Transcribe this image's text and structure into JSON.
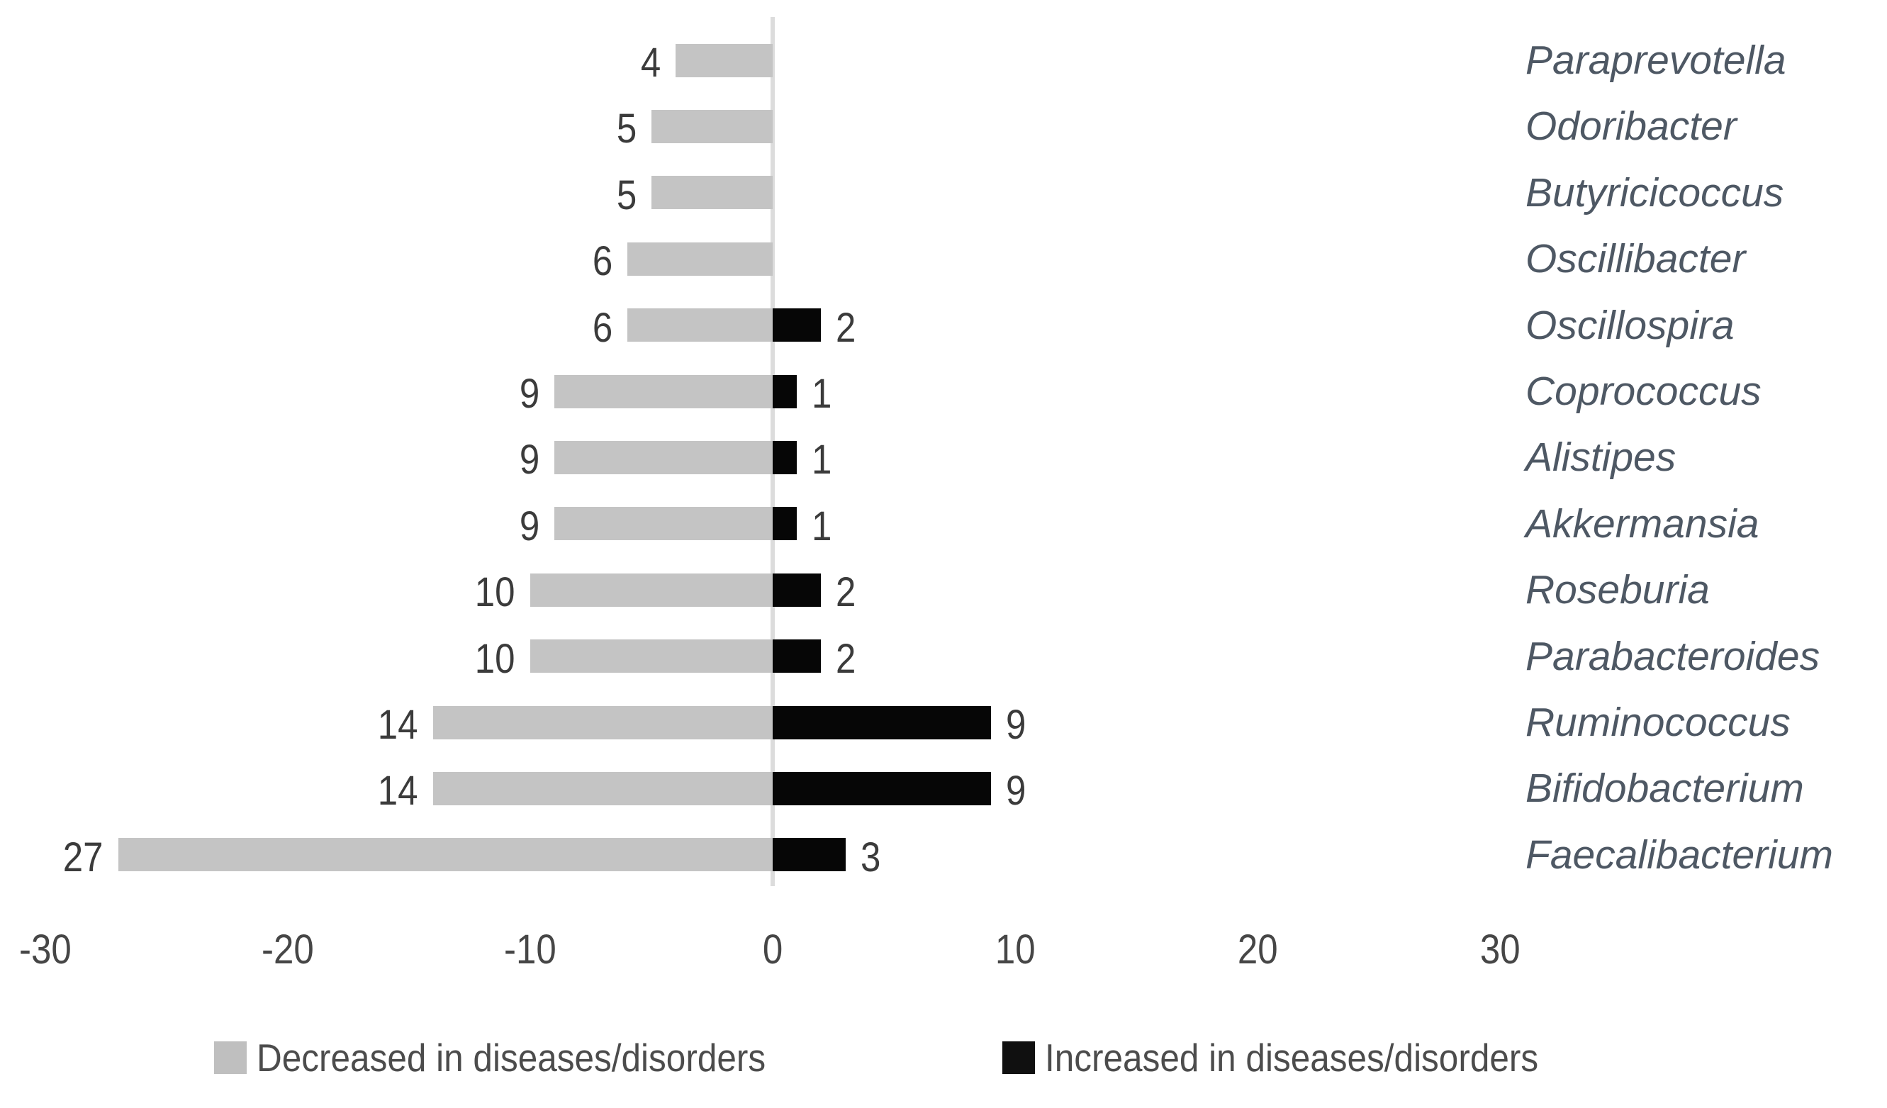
{
  "chart_data": {
    "type": "bar",
    "orientation": "horizontal-diverging",
    "title": "",
    "xlabel": "",
    "ylabel": "",
    "categories": [
      "Paraprevotella",
      "Odoribacter",
      "Butyricicoccus",
      "Oscillibacter",
      "Oscillospira",
      "Coprococcus",
      "Alistipes",
      "Akkermansia",
      "Roseburia",
      "Parabacteroides",
      "Ruminococcus",
      "Bifidobacterium",
      "Faecalibacterium"
    ],
    "series": [
      {
        "name": "Decreased in diseases/disorders",
        "direction": "negative",
        "color": "#c4c4c4",
        "values": [
          4,
          5,
          5,
          6,
          6,
          9,
          9,
          9,
          10,
          10,
          14,
          14,
          27
        ]
      },
      {
        "name": "Increased in diseases/disorders",
        "direction": "positive",
        "color": "#060606",
        "values": [
          null,
          null,
          null,
          null,
          2,
          1,
          1,
          1,
          2,
          2,
          9,
          9,
          3
        ]
      }
    ],
    "x_ticks": [
      -30,
      -20,
      -10,
      0,
      10,
      20,
      30
    ],
    "xlim": [
      -30,
      30
    ],
    "grid": false,
    "zero_axis_line": true,
    "legend_position": "bottom",
    "data_labels": "shown-at-bar-ends"
  },
  "legend": {
    "decreased_label": "Decreased in diseases/disorders",
    "increased_label": "Increased in diseases/disorders"
  },
  "colors": {
    "decreased_bar": "#c4c4c4",
    "increased_bar": "#060606",
    "value_label_text": "#3b3b3b",
    "tick_label_text": "#464646",
    "category_label_text": "#4e5864",
    "zero_line": "#dcdcdc",
    "background": "#ffffff"
  }
}
